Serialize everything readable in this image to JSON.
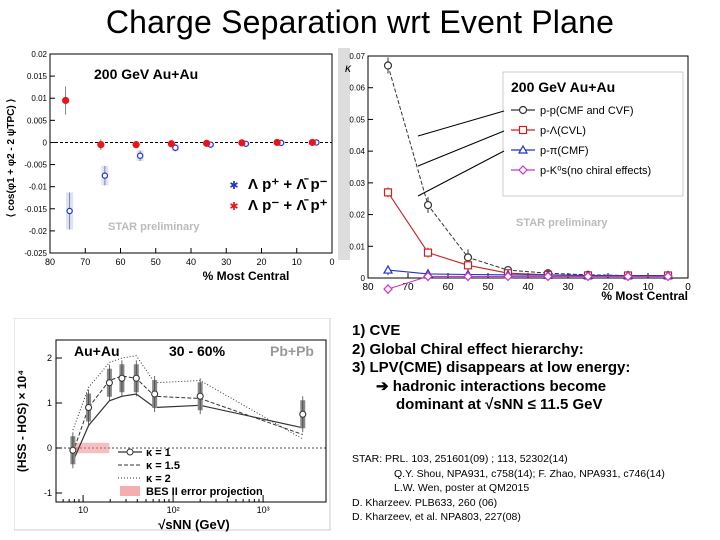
{
  "slide": {
    "title": "Charge Separation wrt Event Plane",
    "notes": [
      "1)  CVE",
      "2)  Global Chiral effect hierarchy:",
      "3) LPV(CME) disappears at low energy:"
    ],
    "note3_sub1": "hadronic interactions become",
    "note3_sub2": "dominant at √sNN ≤ 11.5 GeV",
    "refs": [
      "STAR: PRL. 103, 251601(09) ; 113, 52302(14)",
      "Q.Y. Shou, NPA931, c758(14); F. Zhao, NPA931, c746(14)",
      "L.W. Wen, poster at QM2015",
      "D. Kharzeev. PLB633, 260 (06)",
      "D. Kharzeev, et al. NPA803, 227(08)"
    ],
    "colors": {
      "red": "#e8141e",
      "blue": "#2233cc",
      "violet": "#cc33cc",
      "darkred": "#cc2222",
      "gray": "#888888"
    }
  },
  "chart_data": [
    {
      "type": "scatter",
      "title": "200 GeV Au+Au",
      "xlabel": "% Most Central",
      "ylabel": "⟨ cos(φ1 + φ2 - 2 ψTPC) ⟩",
      "xlim": [
        80,
        0
      ],
      "ylim": [
        -0.025,
        0.02
      ],
      "xticks": [
        "80",
        "70",
        "60",
        "50",
        "40",
        "30",
        "20",
        "10",
        "0"
      ],
      "yticks": [
        "0.02",
        "0.015",
        "0.01",
        "0.005",
        "0",
        "-0.005",
        "-0.01",
        "-0.015",
        "-0.02",
        "-0.025"
      ],
      "watermark": "STAR preliminary",
      "legend": [
        "Λ p⁺ + Λ̄ p⁻",
        "Λ p⁻ + Λ̄ p⁺"
      ],
      "series": [
        {
          "name": "Λ p⁺ + Λ̄ p⁻",
          "x": [
            75,
            65,
            55,
            45,
            35,
            25,
            15,
            5
          ],
          "y": [
            -0.0155,
            -0.0075,
            -0.003,
            -0.0012,
            -0.0005,
            -0.0003,
            -0.0001,
            0.0
          ]
        },
        {
          "name": "Λ p⁻ + Λ̄ p⁺",
          "x": [
            75,
            65,
            55,
            45,
            35,
            25,
            15,
            5
          ],
          "y": [
            0.0095,
            -0.0005,
            -0.0005,
            -0.0003,
            -0.0002,
            -0.0001,
            0.0,
            0.0
          ]
        }
      ]
    },
    {
      "type": "line",
      "title": "200 GeV Au+Au",
      "xlabel": "% Most Central",
      "ylabel": "κ",
      "xlim": [
        80,
        0
      ],
      "ylim": [
        0,
        0.07
      ],
      "xticks": [
        "80",
        "70",
        "60",
        "50",
        "40",
        "30",
        "20",
        "10",
        "0"
      ],
      "yticks": [
        "0",
        "0.01",
        "0.02",
        "0.03",
        "0.04",
        "0.05",
        "0.06",
        "0.07"
      ],
      "watermark": "STAR preliminary",
      "series": [
        {
          "name": "p-p(CMF and CVF)",
          "x": [
            75,
            65,
            55,
            45,
            35,
            25,
            15,
            5
          ],
          "y": [
            0.067,
            0.023,
            0.0065,
            0.0025,
            0.0015,
            0.001,
            0.0008,
            0.0008
          ]
        },
        {
          "name": "p-Λ(CVL)",
          "x": [
            75,
            65,
            55,
            45,
            35,
            25,
            15,
            5
          ],
          "y": [
            0.027,
            0.008,
            0.004,
            0.0015,
            0.001,
            0.0008,
            0.0008,
            0.0008
          ]
        },
        {
          "name": "p-π(CMF)",
          "x": [
            75,
            65,
            55,
            45,
            35,
            25,
            15,
            5
          ],
          "y": [
            0.0025,
            0.0013,
            0.0011,
            0.001,
            0.0009,
            0.0008,
            0.0008,
            0.0008
          ]
        },
        {
          "name": "p-K⁰s(no chiral effects)",
          "x": [
            75,
            65,
            55,
            45,
            35,
            25,
            15,
            5
          ],
          "y": [
            -0.0035,
            0.0005,
            0.0005,
            0.0005,
            0.0005,
            0.0005,
            0.0005,
            0.0005
          ]
        }
      ]
    },
    {
      "type": "line",
      "title": "Au+Au",
      "centrality": "30 - 60%",
      "system_label": "Pb+Pb",
      "xlabel": "√sNN (GeV)",
      "ylabel": "(HSS - HOS) × 10⁴",
      "xscale": "log",
      "xlim": [
        5,
        5000
      ],
      "ylim": [
        -1.2,
        2.4
      ],
      "yticks": [
        "-1",
        "0",
        "1",
        "2"
      ],
      "xticks": [
        "10",
        "10²",
        "10³"
      ],
      "legend": [
        "κ = 1",
        "κ = 1.5",
        "κ = 2",
        "BES II error projection"
      ],
      "series": [
        {
          "name": "κ = 1",
          "x": [
            7.7,
            11.5,
            19.6,
            27,
            39,
            62.4,
            200,
            2760
          ],
          "y": [
            -0.3,
            0.5,
            1.05,
            1.15,
            1.2,
            0.9,
            0.95,
            0.45
          ]
        },
        {
          "name": "κ = 1.5",
          "x": [
            7.7,
            11.5,
            19.6,
            27,
            39,
            62.4,
            200,
            2760
          ],
          "y": [
            -0.1,
            0.9,
            1.5,
            1.6,
            1.55,
            1.15,
            1.1,
            0.3
          ]
        },
        {
          "name": "κ = 2",
          "x": [
            7.7,
            11.5,
            19.6,
            27,
            39,
            62.4,
            200,
            2760
          ],
          "y": [
            0.4,
            1.35,
            1.9,
            2.0,
            2.05,
            1.45,
            1.5,
            0.2
          ]
        },
        {
          "name": "data",
          "x": [
            7.7,
            11.5,
            19.6,
            27,
            39,
            62.4,
            200,
            2760
          ],
          "y": [
            -0.05,
            0.9,
            1.45,
            1.55,
            1.55,
            1.2,
            1.15,
            0.75
          ]
        }
      ],
      "bes_band": {
        "x": [
          7.7,
          19.6
        ],
        "y": [
          -0.05,
          0.05
        ]
      }
    }
  ]
}
